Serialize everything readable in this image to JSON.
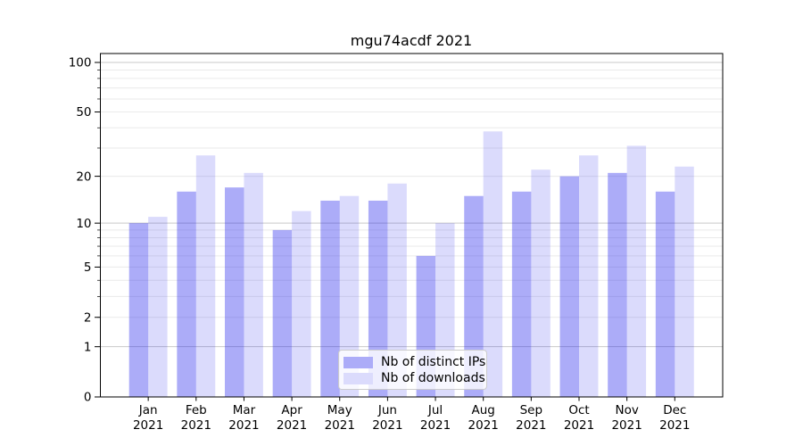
{
  "title": "mgu74acdf 2021",
  "chart_data": {
    "type": "bar",
    "title": "mgu74acdf 2021",
    "categories": [
      "Jan 2021",
      "Feb 2021",
      "Mar 2021",
      "Apr 2021",
      "May 2021",
      "Jun 2021",
      "Jul 2021",
      "Aug 2021",
      "Sep 2021",
      "Oct 2021",
      "Nov 2021",
      "Dec 2021"
    ],
    "months": [
      "Jan",
      "Feb",
      "Mar",
      "Apr",
      "May",
      "Jun",
      "Jul",
      "Aug",
      "Sep",
      "Oct",
      "Nov",
      "Dec"
    ],
    "year": "2021",
    "series": [
      {
        "name": "Nb of distinct IPs",
        "values": [
          10,
          16,
          17,
          9,
          14,
          14,
          6,
          15,
          16,
          20,
          21,
          16
        ],
        "fill": "rgba(30,30,235,0.37)",
        "legend_color": "#acacf8"
      },
      {
        "name": "Nb of downloads",
        "values": [
          11,
          27,
          21,
          12,
          15,
          18,
          10,
          38,
          22,
          27,
          31,
          23
        ],
        "fill": "rgba(30,30,235,0.16)",
        "legend_color": "#dbdbfc"
      }
    ],
    "xlabel": "",
    "ylabel": "",
    "yscale": "log1p",
    "ylim": [
      0,
      114
    ],
    "y_tick_values": [
      100,
      50,
      20,
      10,
      5,
      2,
      1,
      0
    ],
    "y_tick_labels": [
      "100",
      "50",
      "20",
      "10",
      "5",
      "2",
      "1",
      "0"
    ],
    "y_major_gridlines": [
      100,
      10,
      1
    ],
    "y_minor_gridlines": [
      90,
      80,
      70,
      60,
      50,
      40,
      30,
      20,
      9,
      8,
      7,
      6,
      5,
      4,
      3,
      2
    ],
    "grid": true,
    "legend_position": "lower center",
    "colors": {
      "axis": "#000000",
      "gridline_minor": "#eaeaea",
      "gridline_major": "#c9c9c9",
      "tick_label": "#000000",
      "legend_border": "#cccccc"
    }
  }
}
